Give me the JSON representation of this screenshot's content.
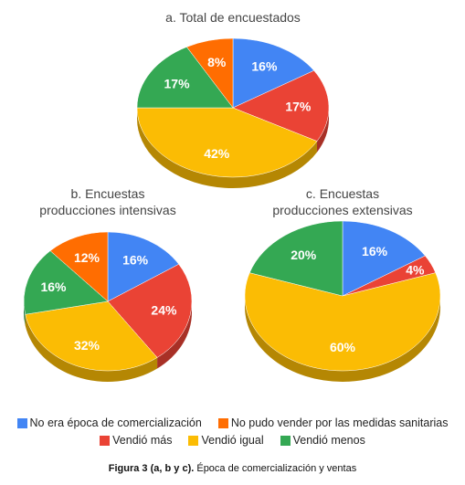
{
  "chart_data": [
    {
      "type": "pie",
      "title": "a. Total de encuestados",
      "slices": [
        {
          "label": "No era época de comercialización",
          "value": 16,
          "text": "16%"
        },
        {
          "label": "Vendió más",
          "value": 17,
          "text": "17%"
        },
        {
          "label": "Vendió igual",
          "value": 42,
          "text": "42%"
        },
        {
          "label": "Vendió menos",
          "value": 17,
          "text": "17%"
        },
        {
          "label": "No pudo vender por las medidas sanitarias",
          "value": 8,
          "text": "8%"
        }
      ]
    },
    {
      "type": "pie",
      "title": "b. Encuestas producciones intensivas",
      "title_lines": [
        "b. Encuestas",
        "producciones intensivas"
      ],
      "slices": [
        {
          "label": "No era época de comercialización",
          "value": 16,
          "text": "16%"
        },
        {
          "label": "Vendió más",
          "value": 24,
          "text": "24%"
        },
        {
          "label": "Vendió igual",
          "value": 32,
          "text": "32%"
        },
        {
          "label": "Vendió menos",
          "value": 16,
          "text": "16%"
        },
        {
          "label": "No pudo vender por las medidas sanitarias",
          "value": 12,
          "text": "12%"
        }
      ]
    },
    {
      "type": "pie",
      "title": "c. Encuestas producciones extensivas",
      "title_lines": [
        "c. Encuestas",
        "producciones extensivas"
      ],
      "slices": [
        {
          "label": "No era época de comercialización",
          "value": 16,
          "text": "16%"
        },
        {
          "label": "Vendió más",
          "value": 4,
          "text": "4%"
        },
        {
          "label": "Vendió igual",
          "value": 60,
          "text": "60%"
        },
        {
          "label": "Vendió menos",
          "value": 20,
          "text": "20%"
        },
        {
          "label": "No pudo vender por las medidas sanitarias",
          "value": 0,
          "text": ""
        }
      ]
    }
  ],
  "legend": [
    {
      "label": "No era época de comercialización",
      "color": "#4285f4"
    },
    {
      "label": "No pudo vender por las medidas sanitarias",
      "color": "#ff6d01"
    },
    {
      "label": "Vendió más",
      "color": "#ea4335"
    },
    {
      "label": "Vendió igual",
      "color": "#fbbc04"
    },
    {
      "label": "Vendió menos",
      "color": "#34a853"
    }
  ],
  "colors": {
    "No era época de comercialización": "#4285f4",
    "No pudo vender por las medidas sanitarias": "#ff6d01",
    "Vendió más": "#ea4335",
    "Vendió igual": "#fbbc04",
    "Vendió menos": "#34a853"
  },
  "caption": {
    "bold": "Figura 3 (a, b y c).",
    "text": " Época de comercialización y ventas"
  }
}
